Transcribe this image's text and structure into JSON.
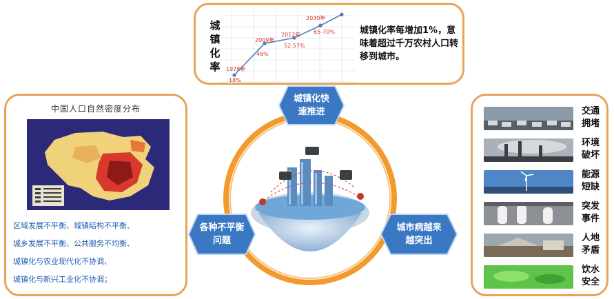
{
  "top": {
    "ylabel": "城镇化率",
    "description": "城镇化率每增加1%，意味着超过千万农村人口转移到城市。",
    "points": [
      {
        "year_label": "1978年",
        "value_label": "18%"
      },
      {
        "year_label": "2009年",
        "value_label": "46%"
      },
      {
        "year_label": "2012年",
        "value_label": "52.57%"
      },
      {
        "year_label": "2030年",
        "value_label": "65-70%"
      }
    ]
  },
  "left": {
    "title": "中国人口自然密度分布",
    "lines": [
      "区域发展不平衡、城镇结构不平衡、",
      "城乡发展不平衡、公共服务不均衡、",
      "城镇化与农业现代化不协调、",
      "城镇化与新兴工业化不协调；"
    ]
  },
  "hexagons": {
    "top": "城镇化快速推进",
    "left": "各种不平衡问题",
    "right": "城市病越来越突出"
  },
  "right": {
    "issues": [
      {
        "label": "交通拥堵",
        "icon": "traffic-photo"
      },
      {
        "label": "环境破坏",
        "icon": "pollution-photo"
      },
      {
        "label": "能源短缺",
        "icon": "wind-turbine-photo"
      },
      {
        "label": "突发事件",
        "icon": "emergency-photo"
      },
      {
        "label": "人地矛盾",
        "icon": "land-photo"
      },
      {
        "label": "饮水安全",
        "icon": "water-photo"
      }
    ]
  },
  "colors": {
    "accent": "#e8a35a",
    "hex": "#3a78c4",
    "text_blue": "#1c5bb0",
    "ring": "#f29a2e"
  }
}
